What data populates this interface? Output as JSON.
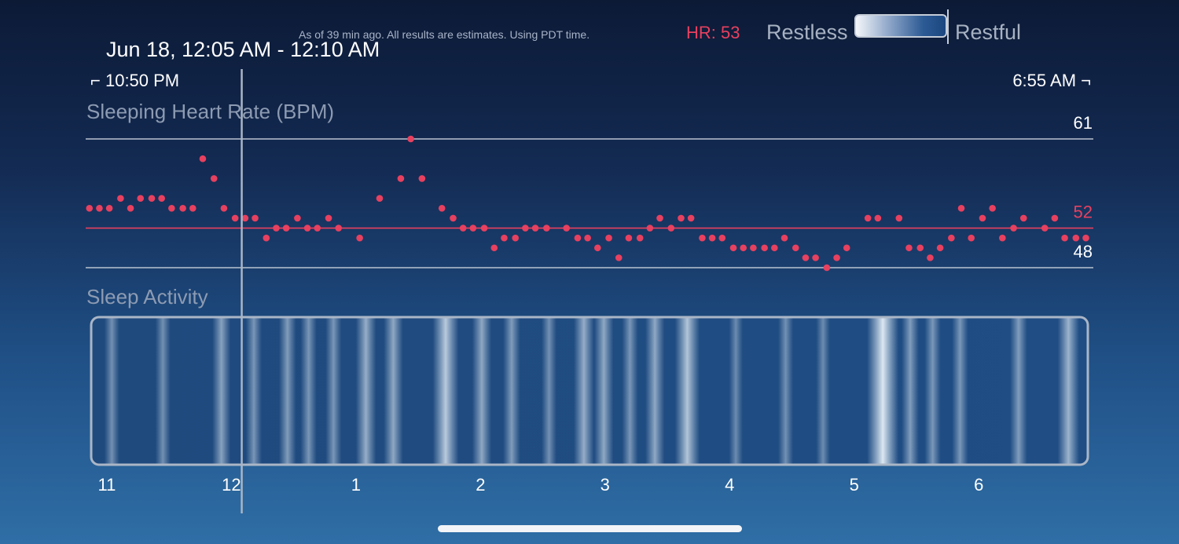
{
  "header": {
    "note": "As of 39 min ago. All results are estimates. Using PDT time.",
    "hr_readout": "HR: 53",
    "legend_left": "Restless",
    "legend_right": "Restful",
    "selected_range": "Jun 18, 12:05 AM - 12:10 AM",
    "start_time": "10:50 PM",
    "end_time": "6:55 AM"
  },
  "colors": {
    "accent_red": "#e8405f",
    "line_white": "#b9c3d1",
    "label_gray": "#8d9bb2"
  },
  "chart_data": [
    {
      "type": "scatter",
      "title": "Sleeping Heart Rate (BPM)",
      "xlabel": "",
      "ylabel": "",
      "x_unit": "hours after midnight",
      "reference_lines": [
        {
          "label": "61",
          "value": 61,
          "color": "#b9c3d1"
        },
        {
          "label": "52",
          "value": 52,
          "color": "#e8405f"
        },
        {
          "label": "48",
          "value": 48,
          "color": "#b9c3d1"
        }
      ],
      "selection_marker_x": 0.083,
      "x": [
        -1.14,
        -1.06,
        -0.98,
        -0.89,
        -0.81,
        -0.73,
        -0.64,
        -0.56,
        -0.48,
        -0.39,
        -0.31,
        -0.23,
        -0.14,
        -0.06,
        0.03,
        0.11,
        0.19,
        0.28,
        0.36,
        0.44,
        0.53,
        0.61,
        0.69,
        0.78,
        0.86,
        1.03,
        1.19,
        1.36,
        1.44,
        1.53,
        1.69,
        1.78,
        1.86,
        1.94,
        2.03,
        2.11,
        2.19,
        2.28,
        2.36,
        2.44,
        2.53,
        2.69,
        2.78,
        2.86,
        2.94,
        3.03,
        3.11,
        3.19,
        3.28,
        3.36,
        3.44,
        3.53,
        3.61,
        3.69,
        3.78,
        3.86,
        3.94,
        4.03,
        4.11,
        4.19,
        4.28,
        4.36,
        4.44,
        4.53,
        4.61,
        4.69,
        4.78,
        4.86,
        4.94,
        5.11,
        5.19,
        5.36,
        5.44,
        5.53,
        5.61,
        5.69,
        5.78,
        5.86,
        5.94,
        6.03,
        6.11,
        6.19,
        6.28,
        6.36,
        6.53,
        6.61,
        6.69,
        6.78,
        6.86
      ],
      "y": [
        54,
        54,
        54,
        55,
        54,
        55,
        55,
        55,
        54,
        54,
        54,
        59,
        57,
        54,
        53,
        53,
        53,
        51,
        52,
        52,
        53,
        52,
        52,
        53,
        52,
        51,
        55,
        57,
        61,
        57,
        54,
        53,
        52,
        52,
        52,
        50,
        51,
        51,
        52,
        52,
        52,
        52,
        51,
        51,
        50,
        51,
        49,
        51,
        51,
        52,
        53,
        52,
        53,
        53,
        51,
        51,
        51,
        50,
        50,
        50,
        50,
        50,
        51,
        50,
        49,
        49,
        48,
        49,
        50,
        53,
        53,
        53,
        50,
        50,
        49,
        50,
        51,
        54,
        51,
        53,
        54,
        51,
        52,
        53,
        52,
        53,
        51,
        51,
        51
      ],
      "ylim": [
        48,
        61
      ],
      "xlim": [
        -1.17,
        6.92
      ]
    },
    {
      "type": "heatmap",
      "title": "Sleep Activity",
      "x_tick_labels": [
        "11",
        "12",
        "1",
        "2",
        "3",
        "4",
        "5",
        "6"
      ],
      "x_tick_values": [
        -1,
        0,
        1,
        2,
        3,
        4,
        5,
        6
      ],
      "xlim": [
        -1.17,
        6.92
      ],
      "color_scale": [
        "#f4f7fa",
        "#1c4780"
      ],
      "restless_bands": [
        {
          "x": -0.96,
          "intensity": 0.25
        },
        {
          "x": -0.55,
          "intensity": 0.25
        },
        {
          "x": -0.08,
          "intensity": 0.4
        },
        {
          "x": 0.18,
          "intensity": 0.3
        },
        {
          "x": 0.45,
          "intensity": 0.35
        },
        {
          "x": 0.62,
          "intensity": 0.3
        },
        {
          "x": 0.82,
          "intensity": 0.3
        },
        {
          "x": 1.08,
          "intensity": 0.5
        },
        {
          "x": 1.3,
          "intensity": 0.45
        },
        {
          "x": 1.72,
          "intensity": 0.75
        },
        {
          "x": 2.01,
          "intensity": 0.45
        },
        {
          "x": 2.25,
          "intensity": 0.35
        },
        {
          "x": 2.55,
          "intensity": 0.25
        },
        {
          "x": 2.83,
          "intensity": 0.5
        },
        {
          "x": 2.99,
          "intensity": 0.45
        },
        {
          "x": 3.2,
          "intensity": 0.3
        },
        {
          "x": 3.4,
          "intensity": 0.45
        },
        {
          "x": 3.66,
          "intensity": 0.7
        },
        {
          "x": 4.05,
          "intensity": 0.2
        },
        {
          "x": 4.45,
          "intensity": 0.25
        },
        {
          "x": 4.75,
          "intensity": 0.2
        },
        {
          "x": 5.23,
          "intensity": 1.0
        },
        {
          "x": 5.45,
          "intensity": 0.35
        },
        {
          "x": 5.63,
          "intensity": 0.3
        },
        {
          "x": 5.85,
          "intensity": 0.3
        },
        {
          "x": 6.32,
          "intensity": 0.35
        },
        {
          "x": 6.72,
          "intensity": 0.55
        }
      ]
    }
  ]
}
